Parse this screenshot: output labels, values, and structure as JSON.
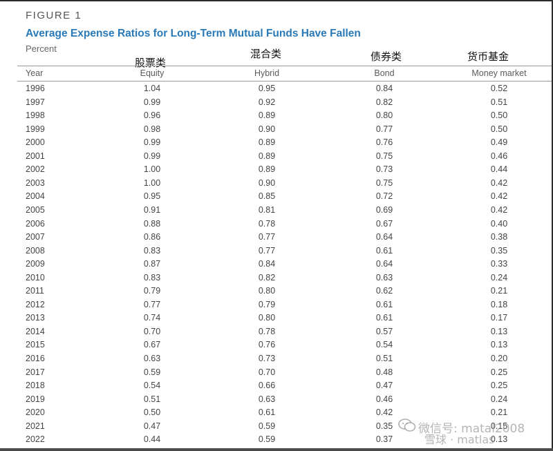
{
  "figure_label": "FIGURE 1",
  "title": "Average Expense Ratios for Long-Term Mutual Funds Have Fallen",
  "unit": "Percent",
  "cn_labels": {
    "equity": "股票类",
    "hybrid": "混合类",
    "bond": "债券类",
    "money": "货币基金"
  },
  "columns": [
    "Year",
    "Equity",
    "Hybrid",
    "Bond",
    "Money market"
  ],
  "rows": [
    [
      "1996",
      "1.04",
      "0.95",
      "0.84",
      "0.52"
    ],
    [
      "1997",
      "0.99",
      "0.92",
      "0.82",
      "0.51"
    ],
    [
      "1998",
      "0.96",
      "0.89",
      "0.80",
      "0.50"
    ],
    [
      "1999",
      "0.98",
      "0.90",
      "0.77",
      "0.50"
    ],
    [
      "2000",
      "0.99",
      "0.89",
      "0.76",
      "0.49"
    ],
    [
      "2001",
      "0.99",
      "0.89",
      "0.75",
      "0.46"
    ],
    [
      "2002",
      "1.00",
      "0.89",
      "0.73",
      "0.44"
    ],
    [
      "2003",
      "1.00",
      "0.90",
      "0.75",
      "0.42"
    ],
    [
      "2004",
      "0.95",
      "0.85",
      "0.72",
      "0.42"
    ],
    [
      "2005",
      "0.91",
      "0.81",
      "0.69",
      "0.42"
    ],
    [
      "2006",
      "0.88",
      "0.78",
      "0.67",
      "0.40"
    ],
    [
      "2007",
      "0.86",
      "0.77",
      "0.64",
      "0.38"
    ],
    [
      "2008",
      "0.83",
      "0.77",
      "0.61",
      "0.35"
    ],
    [
      "2009",
      "0.87",
      "0.84",
      "0.64",
      "0.33"
    ],
    [
      "2010",
      "0.83",
      "0.82",
      "0.63",
      "0.24"
    ],
    [
      "2011",
      "0.79",
      "0.80",
      "0.62",
      "0.21"
    ],
    [
      "2012",
      "0.77",
      "0.79",
      "0.61",
      "0.18"
    ],
    [
      "2013",
      "0.74",
      "0.80",
      "0.61",
      "0.17"
    ],
    [
      "2014",
      "0.70",
      "0.78",
      "0.57",
      "0.13"
    ],
    [
      "2015",
      "0.67",
      "0.76",
      "0.54",
      "0.13"
    ],
    [
      "2016",
      "0.63",
      "0.73",
      "0.51",
      "0.20"
    ],
    [
      "2017",
      "0.59",
      "0.70",
      "0.48",
      "0.25"
    ],
    [
      "2018",
      "0.54",
      "0.66",
      "0.47",
      "0.25"
    ],
    [
      "2019",
      "0.51",
      "0.63",
      "0.46",
      "0.24"
    ],
    [
      "2020",
      "0.50",
      "0.61",
      "0.42",
      "0.21"
    ],
    [
      "2021",
      "0.47",
      "0.59",
      "0.35",
      "0.15"
    ],
    [
      "2022",
      "0.44",
      "0.59",
      "0.37",
      "0.13"
    ]
  ],
  "watermark": {
    "line1": "微信号: matal2008",
    "line2": "雪球 · matlas"
  },
  "colors": {
    "title": "#2a7ab8",
    "rule": "#9a9a9a",
    "text": "#444444"
  }
}
